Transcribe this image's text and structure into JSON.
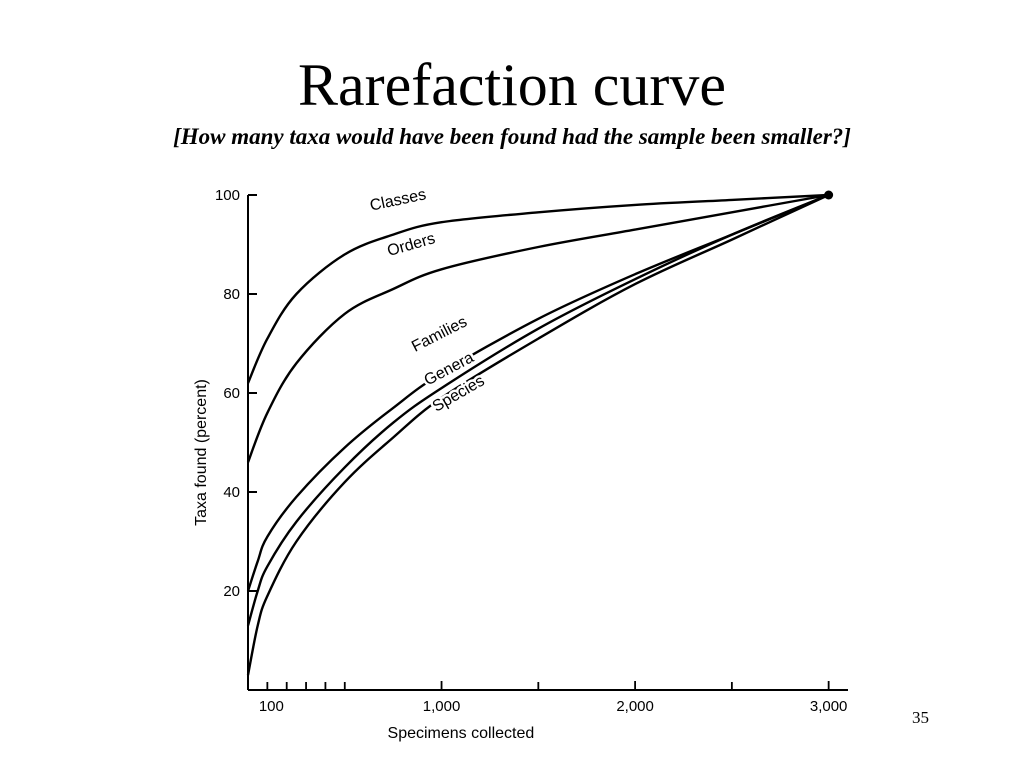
{
  "slide": {
    "title": "Rarefaction curve",
    "subtitle": "[How many taxa would have been found had the sample been smaller?]",
    "page_number": "35"
  },
  "chart_data": {
    "type": "line",
    "title": "",
    "xlabel": "Specimens collected",
    "ylabel": "Taxa found (percent)",
    "xlim": [
      0,
      3100
    ],
    "ylim": [
      0,
      100
    ],
    "x_tick_labels": [
      {
        "value": 100,
        "label": "100"
      },
      {
        "value": 1000,
        "label": "1,000"
      },
      {
        "value": 2000,
        "label": "2,000"
      },
      {
        "value": 3000,
        "label": "3,000"
      }
    ],
    "x_minor_ticks": [
      100,
      200,
      300,
      400,
      500,
      1000,
      1500,
      2000,
      2500,
      3000
    ],
    "y_tick_labels": [
      {
        "value": 20,
        "label": "20"
      },
      {
        "value": 40,
        "label": "40"
      },
      {
        "value": 60,
        "label": "60"
      },
      {
        "value": 80,
        "label": "80"
      },
      {
        "value": 100,
        "label": "100"
      }
    ],
    "grid": false,
    "legend": "none",
    "endpoint": {
      "x": 3000,
      "y": 100
    },
    "series": [
      {
        "name": "Classes",
        "x": [
          0,
          100,
          250,
          500,
          750,
          1000,
          1500,
          2000,
          2500,
          3000
        ],
        "y": [
          62,
          71,
          80,
          88,
          92,
          94.5,
          96.5,
          98,
          99,
          100
        ]
      },
      {
        "name": "Orders",
        "x": [
          0,
          100,
          250,
          500,
          750,
          1000,
          1500,
          2000,
          2500,
          3000
        ],
        "y": [
          46,
          56,
          66,
          76,
          81,
          85,
          89.5,
          93,
          96.5,
          100
        ]
      },
      {
        "name": "Families",
        "x": [
          0,
          50,
          100,
          250,
          500,
          750,
          1000,
          1500,
          2000,
          2500,
          3000
        ],
        "y": [
          20,
          26,
          31,
          39,
          49,
          57,
          64,
          75,
          84,
          92,
          100
        ]
      },
      {
        "name": "Genera",
        "x": [
          0,
          50,
          100,
          250,
          500,
          750,
          1000,
          1500,
          2000,
          2500,
          3000
        ],
        "y": [
          13,
          20,
          25,
          34,
          45,
          54,
          61,
          73,
          83,
          92,
          100
        ]
      },
      {
        "name": "Species",
        "x": [
          0,
          50,
          100,
          250,
          500,
          750,
          1000,
          1500,
          2000,
          2500,
          3000
        ],
        "y": [
          3,
          13,
          19,
          30,
          42,
          51,
          59,
          71,
          82,
          91,
          100
        ]
      }
    ]
  }
}
